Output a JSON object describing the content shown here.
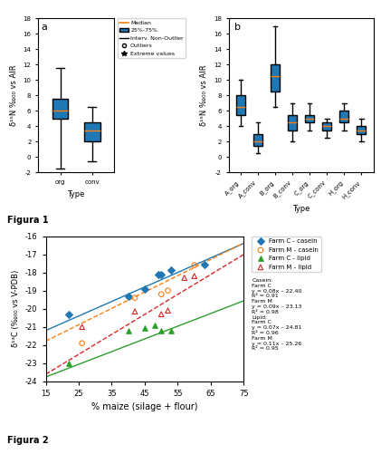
{
  "chart_data": [
    {
      "type": "box",
      "panel_label": "a",
      "caption": "Figura 1",
      "categories": [
        "org",
        "conv"
      ],
      "median": [
        6.0,
        3.5
      ],
      "q1": [
        5.0,
        2.0
      ],
      "q3": [
        7.5,
        4.5
      ],
      "whisker_low": [
        -1.5,
        -0.5
      ],
      "whisker_high": [
        11.5,
        6.5
      ],
      "xlabel": "Type",
      "ylabel": "δ¹⁵N ‰₀₀ vs AIR",
      "ylim": [
        -2,
        18
      ],
      "yticks": [
        -2,
        0,
        2,
        4,
        6,
        8,
        10,
        12,
        14,
        16,
        18
      ],
      "legend_entries": [
        "Median",
        "25%-75%",
        "Interv. Non-Outlier",
        "Outliers",
        "Extreme values"
      ],
      "legend": "right"
    },
    {
      "type": "box",
      "panel_label": "b",
      "categories": [
        "A_org",
        "A_conv",
        "B_org",
        "B_conv",
        "C_org",
        "C_conv",
        "H_org",
        "H_conv"
      ],
      "median": [
        6.5,
        2.0,
        10.5,
        4.5,
        5.0,
        4.0,
        5.0,
        3.5
      ],
      "q1": [
        5.5,
        1.5,
        8.5,
        3.5,
        4.5,
        3.5,
        4.5,
        3.0
      ],
      "q3": [
        8.0,
        3.0,
        12.0,
        5.5,
        5.5,
        4.5,
        6.0,
        4.0
      ],
      "whisker_low": [
        4.0,
        0.5,
        6.5,
        2.0,
        3.5,
        2.5,
        3.5,
        2.0
      ],
      "whisker_high": [
        10.0,
        4.5,
        17.0,
        7.0,
        7.0,
        5.0,
        7.0,
        5.0
      ],
      "xlabel": "Type",
      "ylabel": "δ¹⁵N ‰₀₀ vs AIR",
      "ylim": [
        -2,
        18
      ],
      "yticks": [
        -2,
        0,
        2,
        4,
        6,
        8,
        10,
        12,
        14,
        16,
        18
      ]
    },
    {
      "type": "scatter",
      "caption": "Figura 2",
      "xlabel": "% maize (silage + flour)",
      "ylabel": "δ¹³C (‰₀₀ vs V-PDB)",
      "xlim": [
        15,
        75
      ],
      "xticks": [
        15,
        25,
        35,
        45,
        55,
        65,
        75
      ],
      "ylim": [
        -24,
        -16
      ],
      "yticks": [
        -24,
        -23,
        -22,
        -21,
        -20,
        -19,
        -18,
        -17,
        -16
      ],
      "legend": "right",
      "series": [
        {
          "name": "Farm C - casein",
          "marker": "diamond",
          "x": [
            22,
            40,
            45,
            49,
            50,
            53,
            63
          ],
          "values": [
            -20.3,
            -19.3,
            -18.9,
            -18.1,
            -18.1,
            -17.85,
            -17.55
          ],
          "fit": {
            "x": [
              15,
              75
            ],
            "values": [
              -21.2,
              -16.4
            ],
            "line_style": "solid"
          }
        },
        {
          "name": "Farm M - casein",
          "marker": "circle_open",
          "x": [
            26,
            42,
            50,
            52,
            60
          ],
          "values": [
            -21.9,
            -19.4,
            -19.2,
            -19.0,
            -17.6
          ],
          "fit": {
            "x": [
              15,
              75
            ],
            "values": [
              -21.78,
              -16.38
            ],
            "line_style": "dashed"
          }
        },
        {
          "name": "Farm C - lipid",
          "marker": "triangle",
          "x": [
            22,
            40,
            45,
            48,
            50,
            53
          ],
          "values": [
            -23.0,
            -21.2,
            -21.05,
            -20.9,
            -21.2,
            -21.2
          ],
          "fit": {
            "x": [
              15,
              75
            ],
            "values": [
              -23.76,
              -19.56
            ],
            "line_style": "solid"
          }
        },
        {
          "name": "Farm M - lipid",
          "marker": "triangle_open",
          "x": [
            26,
            42,
            50,
            52,
            57,
            60
          ],
          "values": [
            -21.0,
            -20.15,
            -20.3,
            -20.1,
            -18.3,
            -18.2
          ],
          "fit": {
            "x": [
              15,
              75
            ],
            "values": [
              -23.61,
              -17.01
            ],
            "line_style": "dashed"
          }
        }
      ],
      "annotations": [
        "Casein:",
        "Farm C",
        "y = 0.08x – 22.40",
        "R² = 0.91",
        "Farm M",
        "y = 0.09x – 23.13",
        "R² = 0.98",
        "Lipid:",
        "Farm C",
        "y = 0.07x – 24.81",
        "R² = 0.96",
        "Farm M",
        "y = 0.11x – 25.26",
        "R² = 0.95"
      ]
    }
  ]
}
